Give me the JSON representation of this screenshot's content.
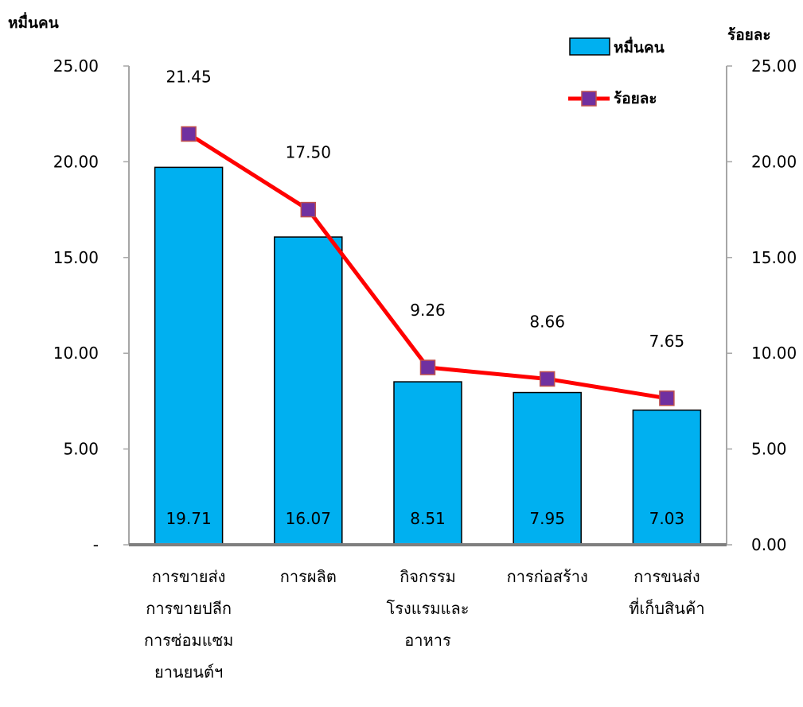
{
  "chart_data": {
    "type": "bar",
    "categories": [
      [
        "การขายส่ง",
        "การขายปลีก",
        "การซ่อมแซม",
        "ยานยนต์ฯ"
      ],
      [
        "การผลิต"
      ],
      [
        "กิจกรรม",
        "โรงแรมและ",
        "อาหาร"
      ],
      [
        "การก่อสร้าง"
      ],
      [
        "การขนส่ง",
        "ที่เก็บสินค้า"
      ]
    ],
    "series": [
      {
        "name": "หมื่นคน",
        "kind": "bar",
        "axis": "left",
        "color": "#00b0f0",
        "values": [
          19.71,
          16.07,
          8.51,
          7.95,
          7.03
        ],
        "labels": [
          "19.71",
          "16.07",
          "8.51",
          "7.95",
          "7.03"
        ]
      },
      {
        "name": "ร้อยละ",
        "kind": "line",
        "axis": "right",
        "color": "#ff0000",
        "marker_color": "#7030a0",
        "values": [
          21.45,
          17.5,
          9.26,
          8.66,
          7.65
        ],
        "labels": [
          "21.45",
          "17.50",
          "9.26",
          "8.66",
          "7.65"
        ]
      }
    ],
    "ylabel": "หมื่นคน",
    "y2label": "ร้อยละ",
    "ylim": [
      0,
      25
    ],
    "y2lim": [
      0,
      25
    ],
    "yticks": [
      "-",
      "5.00",
      "10.00",
      "15.00",
      "20.00",
      "25.00"
    ],
    "y2ticks": [
      "0.00",
      "5.00",
      "10.00",
      "15.00",
      "20.00",
      "25.00"
    ],
    "grid": false,
    "legend_position": "top-right",
    "legend": [
      {
        "label": "หมื่นคน",
        "kind": "bar"
      },
      {
        "label": "ร้อยละ",
        "kind": "line"
      }
    ]
  }
}
